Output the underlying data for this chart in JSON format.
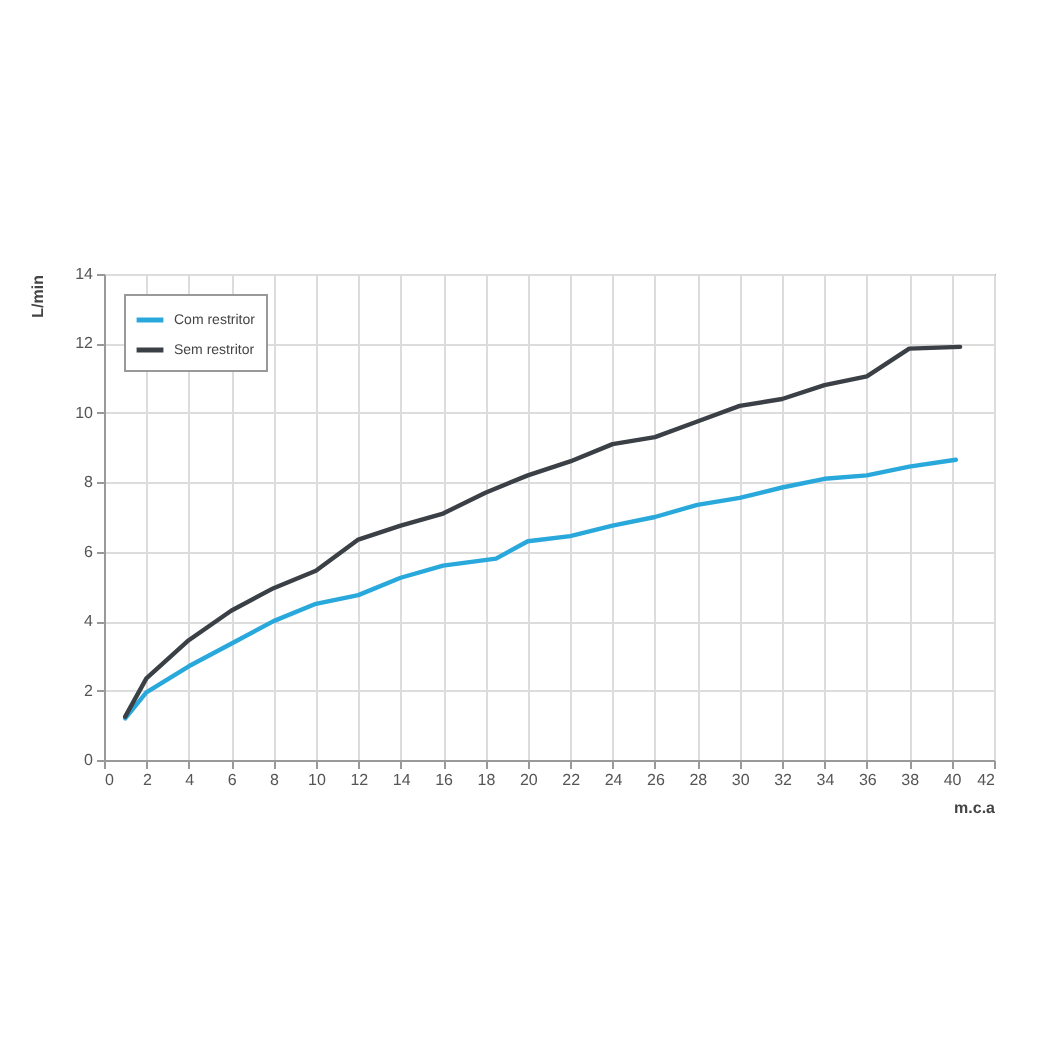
{
  "chart_data": {
    "type": "line",
    "xlabel": "m.c.a",
    "ylabel": "L/min",
    "series": [
      {
        "name": "Com restritor",
        "color": "#29a8dc",
        "x": [
          1,
          2,
          4,
          6,
          8,
          10,
          12,
          14,
          16,
          18.5,
          20,
          22,
          24,
          26,
          28,
          30,
          32,
          34,
          36,
          38,
          40.2
        ],
        "values": [
          1.2,
          1.95,
          2.7,
          3.35,
          4.0,
          4.5,
          4.75,
          5.25,
          5.6,
          5.8,
          6.3,
          6.45,
          6.75,
          7.0,
          7.35,
          7.55,
          7.85,
          8.1,
          8.2,
          8.45,
          8.65
        ]
      },
      {
        "name": "Sem restritor",
        "color": "#3b4046",
        "x": [
          1,
          2,
          4,
          6,
          8,
          10,
          12,
          14,
          16,
          18,
          20,
          22,
          24,
          26,
          28,
          30,
          32,
          34,
          36,
          38,
          40.4
        ],
        "values": [
          1.25,
          2.35,
          3.45,
          4.3,
          4.95,
          5.45,
          6.35,
          6.75,
          7.1,
          7.7,
          8.2,
          8.6,
          9.1,
          9.3,
          9.75,
          10.2,
          10.4,
          10.8,
          11.05,
          11.85,
          11.9
        ]
      }
    ],
    "xlim": [
      0,
      42
    ],
    "xticks": [
      0,
      2,
      4,
      6,
      8,
      10,
      12,
      14,
      16,
      18,
      20,
      22,
      24,
      26,
      28,
      30,
      32,
      34,
      36,
      38,
      40,
      42
    ],
    "ylim": [
      0,
      14
    ],
    "yticks": [
      0,
      2,
      4,
      6,
      8,
      10,
      12,
      14
    ],
    "grid": true,
    "legend": "top left"
  }
}
